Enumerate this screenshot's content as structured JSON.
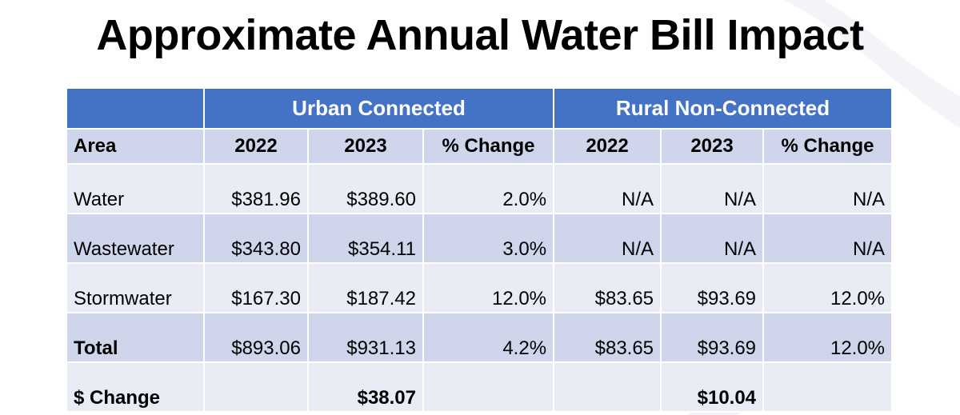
{
  "title": "Approximate Annual Water Bill Impact",
  "colors": {
    "header_blue": "#4472c4",
    "row_dark": "#cfd5ea",
    "row_light": "#e9ebf5",
    "text": "#000000",
    "header_text": "#ffffff"
  },
  "table": {
    "groups": [
      "Urban Connected",
      "Rural Non-Connected"
    ],
    "columns": [
      "Area",
      "2022",
      "2023",
      "% Change",
      "2022",
      "2023",
      "% Change"
    ],
    "rows": [
      {
        "area": "Water",
        "cells": [
          "$381.96",
          "$389.60",
          "2.0%",
          "N/A",
          "N/A",
          "N/A"
        ]
      },
      {
        "area": "Wastewater",
        "cells": [
          "$343.80",
          "$354.11",
          "3.0%",
          "N/A",
          "N/A",
          "N/A"
        ]
      },
      {
        "area": "Stormwater",
        "cells": [
          "$167.30",
          "$187.42",
          "12.0%",
          "$83.65",
          "$93.69",
          "12.0%"
        ]
      },
      {
        "area": "Total",
        "cells": [
          "$893.06",
          "$931.13",
          "4.2%",
          "$83.65",
          "$93.69",
          "12.0%"
        ]
      }
    ],
    "change_row": {
      "label": "$ Change",
      "urban": "$38.07",
      "rural": "$10.04"
    }
  }
}
